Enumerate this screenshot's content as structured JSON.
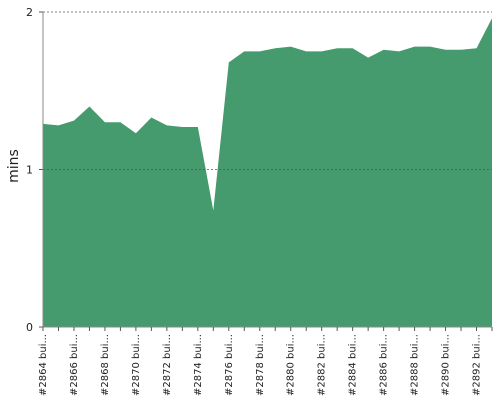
{
  "chart_data": {
    "type": "area",
    "y_label": "mins",
    "categories": [
      "#2864 bui...",
      null,
      "#2866 bui...",
      null,
      "#2868 bui...",
      null,
      "#2870 bui...",
      null,
      "#2872 bui...",
      null,
      "#2874 bui...",
      null,
      "#2876 bui...",
      null,
      "#2878 bui...",
      null,
      "#2880 bui...",
      null,
      "#2882 bui...",
      null,
      "#2884 bui...",
      null,
      "#2886 bui...",
      null,
      "#2888 bui...",
      null,
      "#2890 bui...",
      null,
      "#2892 bui...",
      null
    ],
    "values": [
      1.29,
      1.28,
      1.31,
      1.4,
      1.3,
      1.3,
      1.23,
      1.33,
      1.28,
      1.27,
      1.27,
      0.74,
      1.68,
      1.75,
      1.75,
      1.77,
      1.78,
      1.75,
      1.75,
      1.77,
      1.77,
      1.71,
      1.76,
      1.75,
      1.78,
      1.78,
      1.76,
      1.76,
      1.77,
      1.96
    ],
    "color": "#459b6d",
    "ylim": [
      0,
      2
    ],
    "yticks": [
      0,
      1,
      2
    ],
    "grid": true
  }
}
